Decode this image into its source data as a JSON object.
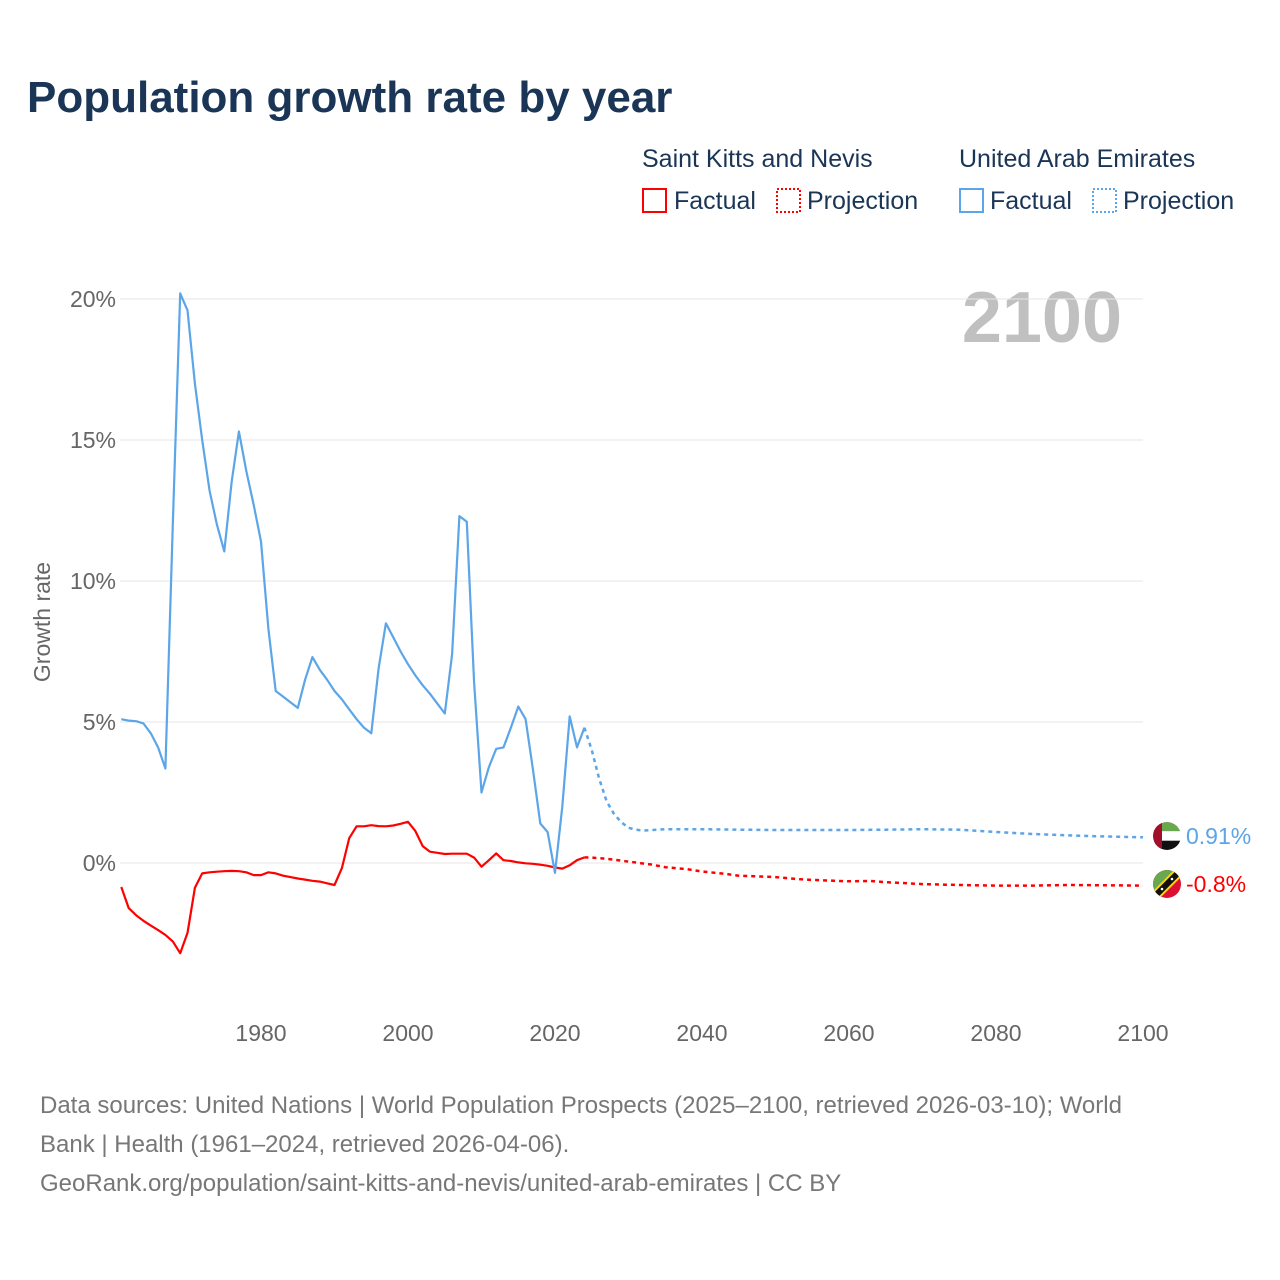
{
  "chart_data": {
    "type": "line",
    "title": "Population growth rate by year",
    "ylabel": "Growth rate",
    "xlabel": "",
    "xlim": [
      1961,
      2100
    ],
    "ylim": [
      -3.2,
      20.3
    ],
    "x_ticks": [
      "1980",
      "2000",
      "2020",
      "2040",
      "2060",
      "2080",
      "2100"
    ],
    "y_ticks": [
      "0%",
      "5%",
      "10%",
      "15%",
      "20%"
    ],
    "y_tick_values": [
      0,
      5,
      10,
      15,
      20
    ],
    "x_tick_values": [
      1980,
      2000,
      2020,
      2040,
      2060,
      2080,
      2100
    ],
    "grid": true,
    "current_year_label": "2100",
    "legend": {
      "placement": "top-right",
      "groups": [
        {
          "country": "Saint Kitts and Nevis",
          "factual": "Factual",
          "projection": "Projection"
        },
        {
          "country": "United Arab Emirates",
          "factual": "Factual",
          "projection": "Projection"
        }
      ]
    },
    "series": [
      {
        "name": "Saint Kitts and Nevis",
        "color": "#ff0000",
        "end_label": "-0.8%",
        "factual": {
          "x": [
            1961,
            1962,
            1963,
            1964,
            1965,
            1966,
            1967,
            1968,
            1969,
            1970,
            1971,
            1972,
            1973,
            1974,
            1975,
            1976,
            1977,
            1978,
            1979,
            1980,
            1981,
            1982,
            1983,
            1984,
            1985,
            1986,
            1987,
            1988,
            1989,
            1990,
            1991,
            1992,
            1993,
            1994,
            1995,
            1996,
            1997,
            1998,
            1999,
            2000,
            2001,
            2002,
            2003,
            2004,
            2005,
            2006,
            2007,
            2008,
            2009,
            2010,
            2011,
            2012,
            2013,
            2014,
            2015,
            2016,
            2017,
            2018,
            2019,
            2020,
            2021,
            2022,
            2023,
            2024
          ],
          "y": [
            -0.85,
            -1.6,
            -1.85,
            -2.05,
            -2.22,
            -2.38,
            -2.55,
            -2.78,
            -3.2,
            -2.48,
            -0.88,
            -0.37,
            -0.33,
            -0.31,
            -0.29,
            -0.28,
            -0.29,
            -0.33,
            -0.43,
            -0.43,
            -0.33,
            -0.37,
            -0.45,
            -0.5,
            -0.55,
            -0.59,
            -0.63,
            -0.66,
            -0.72,
            -0.78,
            -0.18,
            0.88,
            1.3,
            1.3,
            1.34,
            1.31,
            1.3,
            1.33,
            1.39,
            1.46,
            1.13,
            0.6,
            0.4,
            0.36,
            0.32,
            0.33,
            0.33,
            0.33,
            0.19,
            -0.13,
            0.1,
            0.34,
            0.1,
            0.07,
            0.02,
            -0.01,
            -0.03,
            -0.06,
            -0.1,
            -0.16,
            -0.2,
            -0.08,
            0.1,
            0.2
          ]
        },
        "projection": {
          "x": [
            2024,
            2025,
            2027,
            2030,
            2033,
            2035,
            2038,
            2040,
            2043,
            2045,
            2048,
            2050,
            2053,
            2055,
            2058,
            2060,
            2063,
            2065,
            2068,
            2070,
            2075,
            2080,
            2085,
            2090,
            2095,
            2100
          ],
          "y": [
            0.2,
            0.19,
            0.15,
            0.05,
            -0.05,
            -0.15,
            -0.22,
            -0.3,
            -0.38,
            -0.45,
            -0.48,
            -0.5,
            -0.57,
            -0.6,
            -0.63,
            -0.65,
            -0.64,
            -0.68,
            -0.72,
            -0.75,
            -0.78,
            -0.8,
            -0.8,
            -0.78,
            -0.79,
            -0.8
          ]
        }
      },
      {
        "name": "United Arab Emirates",
        "color": "#5ba5e8",
        "end_label": "0.91%",
        "factual": {
          "x": [
            1961,
            1962,
            1963,
            1964,
            1965,
            1966,
            1967,
            1968,
            1969,
            1970,
            1971,
            1972,
            1973,
            1974,
            1975,
            1976,
            1977,
            1978,
            1979,
            1980,
            1981,
            1982,
            1983,
            1984,
            1985,
            1986,
            1987,
            1988,
            1989,
            1990,
            1991,
            1992,
            1993,
            1994,
            1995,
            1996,
            1997,
            1998,
            1999,
            2000,
            2001,
            2002,
            2003,
            2004,
            2005,
            2006,
            2007,
            2008,
            2009,
            2010,
            2011,
            2012,
            2013,
            2014,
            2015,
            2016,
            2017,
            2018,
            2019,
            2020,
            2021,
            2022,
            2023,
            2024
          ],
          "y": [
            5.1,
            5.05,
            5.03,
            4.95,
            4.6,
            4.1,
            3.35,
            12.0,
            20.2,
            19.6,
            17.0,
            15.0,
            13.2,
            12.0,
            11.05,
            13.5,
            15.3,
            13.9,
            12.7,
            11.4,
            8.3,
            6.1,
            5.9,
            5.7,
            5.5,
            6.5,
            7.3,
            6.85,
            6.5,
            6.1,
            5.8,
            5.45,
            5.1,
            4.8,
            4.6,
            6.9,
            8.5,
            8.0,
            7.5,
            7.05,
            6.65,
            6.3,
            6.0,
            5.65,
            5.3,
            7.4,
            12.3,
            12.1,
            6.4,
            2.5,
            3.4,
            4.05,
            4.1,
            4.8,
            5.55,
            5.1,
            3.3,
            1.4,
            1.1,
            -0.35,
            2.0,
            5.2,
            4.1,
            4.8
          ]
        },
        "projection": {
          "x": [
            2024,
            2025,
            2026,
            2027,
            2028,
            2029,
            2030,
            2031,
            2032,
            2035,
            2040,
            2045,
            2050,
            2055,
            2060,
            2065,
            2070,
            2075,
            2080,
            2085,
            2090,
            2095,
            2100
          ],
          "y": [
            4.8,
            4.0,
            3.0,
            2.2,
            1.75,
            1.45,
            1.25,
            1.18,
            1.15,
            1.2,
            1.2,
            1.18,
            1.17,
            1.17,
            1.17,
            1.18,
            1.2,
            1.18,
            1.1,
            1.03,
            0.98,
            0.94,
            0.91
          ]
        }
      }
    ]
  },
  "footer": {
    "line1": "Data sources: United Nations | World Population Prospects (2025–2100, retrieved 2026-03-10); World",
    "line2": "Bank | Health (1961–2024, retrieved 2026-04-06).",
    "line3": "GeoRank.org/population/saint-kitts-and-nevis/united-arab-emirates | CC BY"
  }
}
